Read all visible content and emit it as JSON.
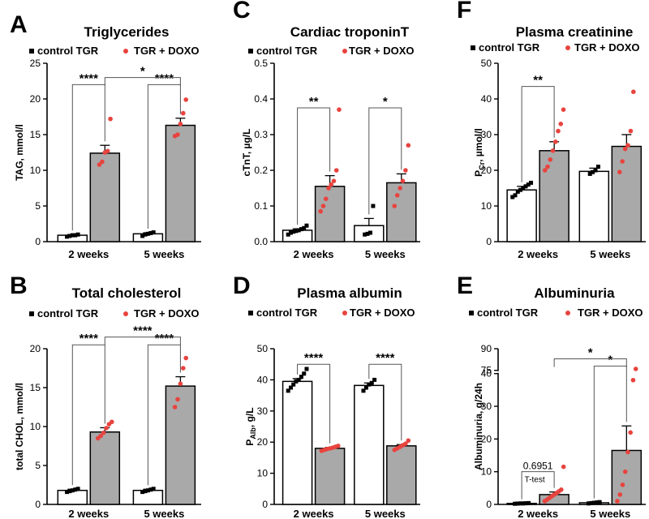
{
  "chart_data": [
    {
      "id": "A",
      "panel_letter": "A",
      "type": "bar",
      "title": "Triglycerides",
      "ylabel": "TAG, mmol/l",
      "categories": [
        "2 weeks",
        "5 weeks"
      ],
      "legend": [
        "control TGR",
        "TGR + DOXO"
      ],
      "ylim": [
        0,
        25
      ],
      "yticks": [
        0,
        5,
        10,
        15,
        20,
        25
      ],
      "series": [
        {
          "name": "control TGR",
          "values": [
            0.9,
            1.1
          ],
          "errors": [
            0.1,
            0.15
          ],
          "points": [
            [
              0.7,
              0.8,
              0.9,
              0.9,
              1.0
            ],
            [
              0.8,
              1.0,
              1.1,
              1.2,
              1.3
            ]
          ]
        },
        {
          "name": "TGR + DOXO",
          "values": [
            12.4,
            16.3
          ],
          "errors": [
            1.1,
            1.0
          ],
          "points": [
            [
              10.8,
              11.2,
              12.5,
              12.7,
              17.2
            ],
            [
              14.8,
              15.0,
              16.5,
              18.0,
              19.9
            ]
          ]
        }
      ],
      "annotations": [
        {
          "type": "within",
          "group": 0,
          "label": "****",
          "y": 22.0
        },
        {
          "type": "within",
          "group": 1,
          "label": "****",
          "y": 22.0
        },
        {
          "type": "between",
          "label": "*",
          "y": 23.0
        }
      ]
    },
    {
      "id": "C",
      "panel_letter": "C",
      "type": "bar",
      "title": "Cardiac troponinT",
      "ylabel": "cTnT, µg/L",
      "categories": [
        "2 weeks",
        "5 weeks"
      ],
      "legend": [
        "control TGR",
        "TGR + DOXO"
      ],
      "ylim": [
        0,
        0.5
      ],
      "yticks": [
        "0.0",
        "0.1",
        "0.2",
        "0.3",
        "0.4",
        "0.5"
      ],
      "series": [
        {
          "name": "control TGR",
          "values": [
            0.032,
            0.045
          ],
          "errors": [
            0.004,
            0.02
          ],
          "points": [
            [
              0.02,
              0.025,
              0.028,
              0.03,
              0.032,
              0.035,
              0.038,
              0.045
            ],
            [
              0.02,
              0.022,
              0.025,
              0.1
            ]
          ]
        },
        {
          "name": "TGR + DOXO",
          "values": [
            0.155,
            0.165
          ],
          "errors": [
            0.03,
            0.025
          ],
          "points": [
            [
              0.085,
              0.1,
              0.12,
              0.15,
              0.16,
              0.17,
              0.2,
              0.37
            ],
            [
              0.1,
              0.13,
              0.15,
              0.17,
              0.2,
              0.27
            ]
          ]
        }
      ],
      "annotations": [
        {
          "type": "within",
          "group": 0,
          "label": "**",
          "y": 0.375
        },
        {
          "type": "within",
          "group": 1,
          "label": "*",
          "y": 0.375
        }
      ]
    },
    {
      "id": "F",
      "panel_letter": "F",
      "type": "bar",
      "title": "Plasma creatinine",
      "ylabel": "PCr, µmol/l",
      "ylabel_main": "P",
      "ylabel_sub": "Cr",
      "ylabel_rest": ", µmol/l",
      "categories": [
        "2 weeks",
        "5 weeks"
      ],
      "legend": [
        "control TGR",
        "TGR + DOXO"
      ],
      "ylim": [
        0,
        50
      ],
      "yticks": [
        0,
        10,
        20,
        30,
        40,
        50
      ],
      "series": [
        {
          "name": "control TGR",
          "values": [
            14.5,
            19.7
          ],
          "errors": [
            1.0,
            0.9
          ],
          "points": [
            [
              12.5,
              13.0,
              14.0,
              14.5,
              15.0,
              15.5,
              16.0,
              16.5
            ],
            [
              19.0,
              19.5,
              20.0,
              21.0
            ]
          ]
        },
        {
          "name": "TGR + DOXO",
          "values": [
            25.5,
            26.7
          ],
          "errors": [
            2.5,
            3.3
          ],
          "points": [
            [
              20.0,
              21.0,
              23.0,
              25.5,
              28.0,
              31.0,
              33.0,
              37.0
            ],
            [
              19.5,
              22.5,
              26.0,
              27.0,
              31.0,
              42.0
            ]
          ]
        }
      ],
      "annotations": [
        {
          "type": "within",
          "group": 0,
          "label": "**",
          "y": 43.5
        }
      ]
    },
    {
      "id": "B",
      "panel_letter": "B",
      "type": "bar",
      "title": "Total cholesterol",
      "ylabel": "total CHOL, mmol/l",
      "categories": [
        "2 weeks",
        "5 weeks"
      ],
      "legend": [
        "control TGR",
        "TGR + DOXO"
      ],
      "ylim": [
        0,
        20
      ],
      "yticks": [
        0,
        5,
        10,
        15,
        20
      ],
      "series": [
        {
          "name": "control TGR",
          "values": [
            1.8,
            1.8
          ],
          "errors": [
            0.15,
            0.15
          ],
          "points": [
            [
              1.6,
              1.7,
              1.8,
              1.9,
              2.0
            ],
            [
              1.6,
              1.7,
              1.8,
              1.9,
              2.0
            ]
          ]
        },
        {
          "name": "TGR + DOXO",
          "values": [
            9.3,
            15.2
          ],
          "errors": [
            0.55,
            1.2
          ],
          "points": [
            [
              8.5,
              8.8,
              9.2,
              9.8,
              10.3,
              10.6
            ],
            [
              12.5,
              13.5,
              15.5,
              17.5,
              18.8
            ]
          ]
        }
      ],
      "annotations": [
        {
          "type": "within",
          "group": 0,
          "label": "****",
          "y": 20.5
        },
        {
          "type": "within",
          "group": 1,
          "label": "****",
          "y": 20.5
        },
        {
          "type": "between",
          "label": "****",
          "y": 21.5
        }
      ]
    },
    {
      "id": "D",
      "panel_letter": "D",
      "type": "bar",
      "title": "Plasma albumin",
      "ylabel": "PAlb, g/L",
      "ylabel_main": "P",
      "ylabel_sub": "Alb",
      "ylabel_rest": ", g/L",
      "categories": [
        "2 weeks",
        "5 weeks"
      ],
      "legend": [
        "control TGR",
        "TGR + DOXO"
      ],
      "ylim": [
        0,
        50
      ],
      "yticks": [
        0,
        10,
        20,
        30,
        40,
        50
      ],
      "series": [
        {
          "name": "control TGR",
          "values": [
            39.5,
            38.2
          ],
          "errors": [
            0.9,
            0.8
          ],
          "points": [
            [
              36.5,
              37.5,
              38.5,
              39.5,
              40.0,
              41.0,
              42.0,
              43.5
            ],
            [
              36.5,
              37.5,
              38.5,
              39.0,
              40.0
            ]
          ]
        },
        {
          "name": "TGR + DOXO",
          "values": [
            18.0,
            18.8
          ],
          "errors": [
            0.3,
            0.4
          ],
          "points": [
            [
              17.2,
              17.5,
              17.8,
              18.0,
              18.2,
              18.5,
              18.8
            ],
            [
              17.5,
              18.0,
              18.5,
              19.0,
              19.5,
              20.5
            ]
          ]
        }
      ],
      "annotations": [
        {
          "type": "within",
          "group": 0,
          "label": "****",
          "y": 45.0
        },
        {
          "type": "within",
          "group": 1,
          "label": "****",
          "y": 45.0
        }
      ]
    },
    {
      "id": "E",
      "panel_letter": "E",
      "type": "bar",
      "title": "Albuminuria",
      "ylabel": "Albuminuria, g/24h",
      "categories": [
        "2 weeks",
        "5 weeks"
      ],
      "legend": [
        "control TGR",
        "TGR + DOXO"
      ],
      "ylim": [
        0,
        90
      ],
      "axis_break": [
        40,
        75
      ],
      "yticks": [
        0,
        10,
        20,
        30,
        40,
        75,
        90
      ],
      "series": [
        {
          "name": "control TGR",
          "values": [
            0.3,
            0.5
          ],
          "errors": [
            0.05,
            0.1
          ],
          "points": [
            [
              0.2,
              0.25,
              0.3,
              0.3,
              0.35,
              0.4
            ],
            [
              0.3,
              0.4,
              0.5,
              0.6,
              0.7
            ]
          ]
        },
        {
          "name": "TGR + DOXO",
          "values": [
            3.0,
            16.5
          ],
          "errors": [
            0.8,
            7.5
          ],
          "points": [
            [
              1.0,
              1.5,
              2.0,
              2.5,
              3.0,
              3.5,
              4.0,
              4.5,
              11.5
            ],
            [
              1.0,
              3.0,
              6.0,
              10.0,
              16.0,
              22.0,
              38.0,
              76.0
            ]
          ]
        }
      ],
      "annotations": [
        {
          "type": "within",
          "group": 0,
          "label": "0.6951",
          "sublabel": "T-test",
          "y": 10.0
        },
        {
          "type": "within",
          "group": 1,
          "label": "*",
          "y": 78.0
        },
        {
          "type": "between",
          "label": "*",
          "y": 83.0
        }
      ]
    }
  ]
}
